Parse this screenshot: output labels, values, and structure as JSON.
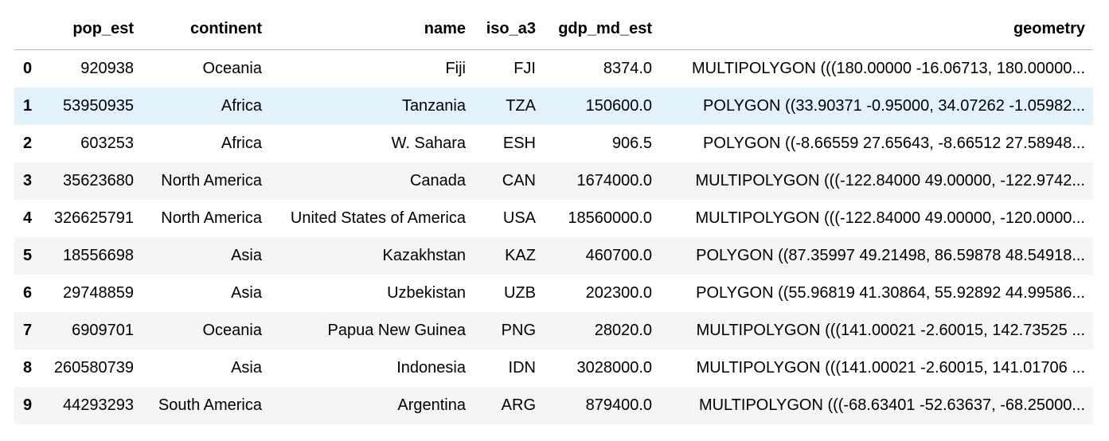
{
  "table": {
    "columns": [
      "pop_est",
      "continent",
      "name",
      "iso_a3",
      "gdp_md_est",
      "geometry"
    ],
    "rows": [
      {
        "index": "0",
        "cells": [
          "920938",
          "Oceania",
          "Fiji",
          "FJI",
          "8374.0",
          "MULTIPOLYGON (((180.00000 -16.06713, 180.00000..."
        ]
      },
      {
        "index": "1",
        "cells": [
          "53950935",
          "Africa",
          "Tanzania",
          "TZA",
          "150600.0",
          "POLYGON ((33.90371 -0.95000, 34.07262 -1.05982..."
        ]
      },
      {
        "index": "2",
        "cells": [
          "603253",
          "Africa",
          "W. Sahara",
          "ESH",
          "906.5",
          "POLYGON ((-8.66559 27.65643, -8.66512 27.58948..."
        ]
      },
      {
        "index": "3",
        "cells": [
          "35623680",
          "North America",
          "Canada",
          "CAN",
          "1674000.0",
          "MULTIPOLYGON (((-122.84000 49.00000, -122.9742..."
        ]
      },
      {
        "index": "4",
        "cells": [
          "326625791",
          "North America",
          "United States of America",
          "USA",
          "18560000.0",
          "MULTIPOLYGON (((-122.84000 49.00000, -120.0000..."
        ]
      },
      {
        "index": "5",
        "cells": [
          "18556698",
          "Asia",
          "Kazakhstan",
          "KAZ",
          "460700.0",
          "POLYGON ((87.35997 49.21498, 86.59878 48.54918..."
        ]
      },
      {
        "index": "6",
        "cells": [
          "29748859",
          "Asia",
          "Uzbekistan",
          "UZB",
          "202300.0",
          "POLYGON ((55.96819 41.30864, 55.92892 44.99586..."
        ]
      },
      {
        "index": "7",
        "cells": [
          "6909701",
          "Oceania",
          "Papua New Guinea",
          "PNG",
          "28020.0",
          "MULTIPOLYGON (((141.00021 -2.60015, 142.73525 ..."
        ]
      },
      {
        "index": "8",
        "cells": [
          "260580739",
          "Asia",
          "Indonesia",
          "IDN",
          "3028000.0",
          "MULTIPOLYGON (((141.00021 -2.60015, 141.01706 ..."
        ]
      },
      {
        "index": "9",
        "cells": [
          "44293293",
          "South America",
          "Argentina",
          "ARG",
          "879400.0",
          "MULTIPOLYGON (((-68.63401 -52.63637, -68.25000..."
        ]
      }
    ]
  }
}
